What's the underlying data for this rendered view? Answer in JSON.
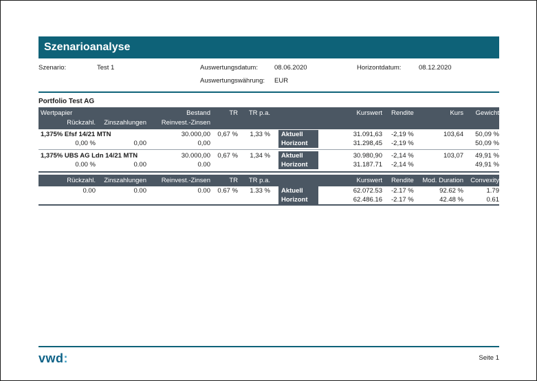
{
  "header": {
    "title": "Szenarioanalyse"
  },
  "meta": {
    "scenario_label": "Szenario:",
    "scenario_value": "Test 1",
    "eval_date_label": "Auswertungsdatum:",
    "eval_date_value": "08.06.2020",
    "horizon_date_label": "Horizontdatum:",
    "horizon_date_value": "08.12.2020",
    "currency_label": "Auswertungswährung:",
    "currency_value": "EUR"
  },
  "portfolio": {
    "title": "Portfolio Test AG"
  },
  "table": {
    "header": {
      "wertpapier": "Wertpapier",
      "rueckzahl": "Rückzahl.",
      "zinszahlungen": "Zinszahlungen",
      "bestand": "Bestand",
      "reinvest": "Reinvest.-Zinsen",
      "tr": "TR",
      "tr_pa": "TR p.a.",
      "kurswert": "Kurswert",
      "rendite": "Rendite",
      "kurs": "Kurs",
      "gewicht": "Gewicht",
      "mod_duration": "Mod. Duration",
      "convexity": "Convexity"
    },
    "row_labels": {
      "aktuell": "Aktuell",
      "horizont": "Horizont"
    },
    "positions": [
      {
        "name": "1,375% Efsf 14/21 MTN",
        "bestand": "30.000,00",
        "tr": "0,67 %",
        "tr_pa": "1,33 %",
        "rueckzahl": "0,00 %",
        "zinszahlungen": "0,00",
        "reinvest": "0,00",
        "aktuell": {
          "kurswert": "31.091,63",
          "rendite": "-2,19 %",
          "kurs": "103,64",
          "gewicht": "50,09 %"
        },
        "horizont": {
          "kurswert": "31.298,45",
          "rendite": "-2,19 %",
          "kurs": "",
          "gewicht": "50,09 %"
        }
      },
      {
        "name": "1,375% UBS AG Ldn 14/21 MTN",
        "bestand": "30.000,00",
        "tr": "0,67 %",
        "tr_pa": "1,34 %",
        "rueckzahl": "0.00 %",
        "zinszahlungen": "0.00",
        "reinvest": "0.00",
        "aktuell": {
          "kurswert": "30.980,90",
          "rendite": "-2,14 %",
          "kurs": "103,07",
          "gewicht": "49,91 %"
        },
        "horizont": {
          "kurswert": "31.187.71",
          "rendite": "-2,14 %",
          "kurs": "",
          "gewicht": "49,91 %"
        }
      }
    ],
    "summary": {
      "rueckzahl": "0.00",
      "zinszahlungen": "0.00",
      "reinvest": "0.00",
      "tr": "0.67 %",
      "tr_pa": "1.33 %",
      "aktuell": {
        "kurswert": "62.072.53",
        "rendite": "-2.17 %",
        "mod_duration": "92.62 %",
        "convexity": "1.79"
      },
      "horizont": {
        "kurswert": "62.486.16",
        "rendite": "-2.17 %",
        "mod_duration": "42.48 %",
        "convexity": "0.61"
      }
    }
  },
  "footer": {
    "logo": "vwd",
    "logo_colon": ":",
    "page": "Seite 1"
  }
}
